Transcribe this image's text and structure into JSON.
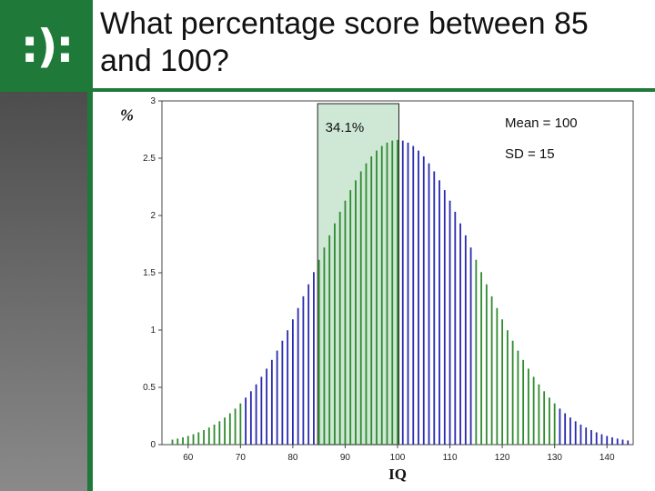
{
  "slide": {
    "logo_text": ":):",
    "title": "What percentage score between 85 and 100?"
  },
  "colors": {
    "brand_green": "#1f7a39",
    "bar_blue": "#2a2ab0",
    "bar_green": "#2e8b2e",
    "highlight_fill": "#cfe8d6"
  },
  "chart_data": {
    "type": "bar",
    "xlabel": "IQ",
    "ylabel": "%",
    "xlim": [
      55,
      145
    ],
    "ylim": [
      0,
      3
    ],
    "xticks": [
      60,
      70,
      80,
      90,
      100,
      110,
      120,
      130,
      140
    ],
    "yticks": [
      0,
      0.5,
      1,
      1.5,
      2,
      2.5,
      3
    ],
    "ytick_labels": [
      "0",
      "0.5",
      "1",
      "1.5",
      "2",
      "2.5",
      "3"
    ],
    "distribution": {
      "mean": 100,
      "sd": 15,
      "x_start": 57,
      "x_end": 144,
      "step": 1
    },
    "green_ranges": [
      [
        57,
        70
      ],
      [
        85,
        100
      ],
      [
        115,
        130
      ]
    ],
    "highlight": {
      "from": 85,
      "to": 100,
      "label": "34.1%"
    },
    "annotations": {
      "mean": "Mean = 100",
      "sd": "SD = 15"
    }
  }
}
